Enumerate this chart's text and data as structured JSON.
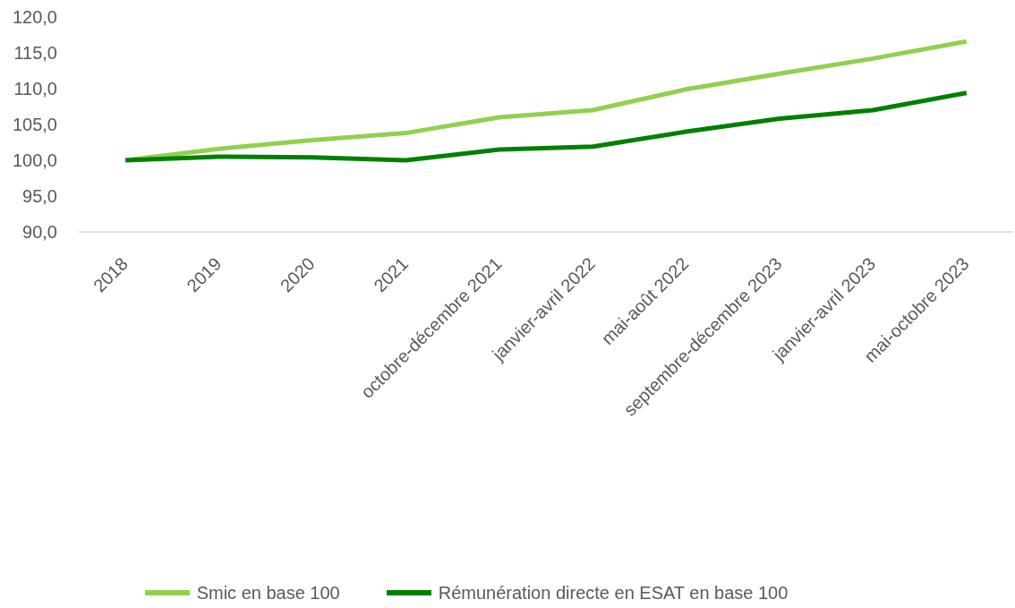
{
  "chart_data": {
    "type": "line",
    "categories": [
      "2018",
      "2019",
      "2020",
      "2021",
      "octobre-décembre 2021",
      "janvier-avril 2022",
      "mai-août 2022",
      "septembre-décembre 2023",
      "janvier-avril 2023",
      "mai-octobre 2023"
    ],
    "series": [
      {
        "name": "Smic en base 100",
        "color": "#92d050",
        "values": [
          100.0,
          101.6,
          102.8,
          103.8,
          106.0,
          107.0,
          109.9,
          112.1,
          114.2,
          116.6
        ]
      },
      {
        "name": "Rémunération directe en ESAT en base 100",
        "color": "#008000",
        "values": [
          100.0,
          100.5,
          100.4,
          100.0,
          101.5,
          101.9,
          104.0,
          105.8,
          107.0,
          109.4
        ]
      }
    ],
    "ylim": [
      90,
      120
    ],
    "yticks": [
      {
        "value": 90,
        "label": "90,0"
      },
      {
        "value": 95,
        "label": "95,0"
      },
      {
        "value": 100,
        "label": "100,0"
      },
      {
        "value": 105,
        "label": "105,0"
      },
      {
        "value": 110,
        "label": "110,0"
      },
      {
        "value": 115,
        "label": "115,0"
      },
      {
        "value": 120,
        "label": "120,0"
      }
    ],
    "legend": "bottom",
    "marker": "none",
    "line_style": "solid"
  }
}
